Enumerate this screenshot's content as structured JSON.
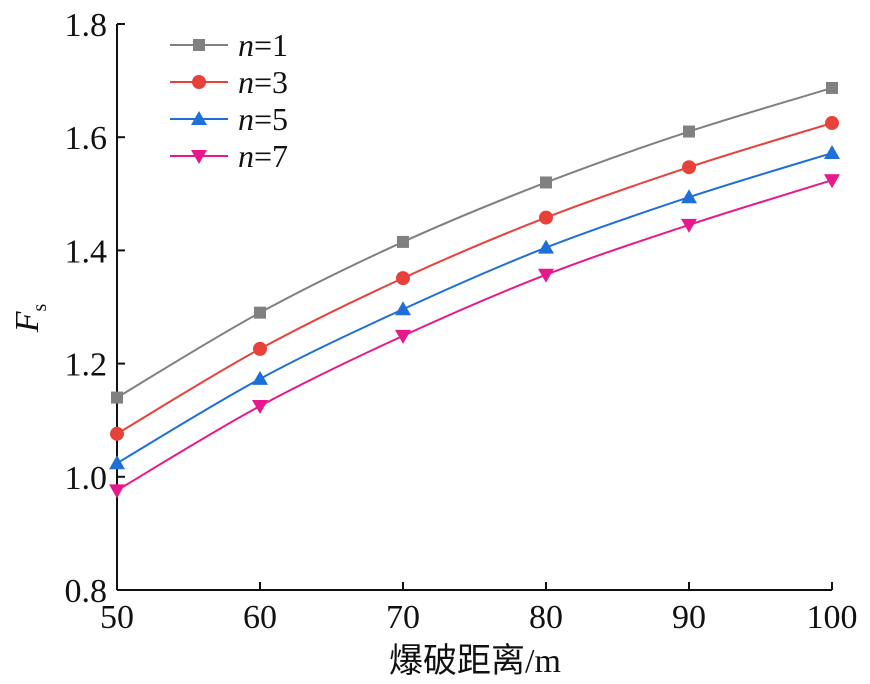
{
  "chart_data": {
    "type": "line",
    "title": "",
    "xlabel": "爆破距离/m",
    "ylabel": "F",
    "ylabel_sub": "s",
    "x": [
      50,
      60,
      70,
      80,
      90,
      100
    ],
    "xlim": [
      50,
      100
    ],
    "ylim": [
      0.8,
      1.8
    ],
    "xticks": [
      "50",
      "60",
      "70",
      "80",
      "90",
      "100"
    ],
    "yticks": [
      "0.8",
      "1.0",
      "1.2",
      "1.4",
      "1.6",
      "1.8"
    ],
    "grid": false,
    "legend_position": "top-left",
    "series": [
      {
        "name": "n=1",
        "var": "n",
        "eq": "=1",
        "marker": "square",
        "color": "#808080",
        "values": [
          1.14,
          1.29,
          1.415,
          1.52,
          1.61,
          1.687
        ]
      },
      {
        "name": "n=3",
        "var": "n",
        "eq": "=3",
        "marker": "circle",
        "color": "#e8413c",
        "values": [
          1.076,
          1.226,
          1.351,
          1.458,
          1.547,
          1.625
        ]
      },
      {
        "name": "n=5",
        "var": "n",
        "eq": "=5",
        "marker": "triangle-up",
        "color": "#1f6fd8",
        "values": [
          1.024,
          1.173,
          1.296,
          1.405,
          1.494,
          1.572
        ]
      },
      {
        "name": "n=7",
        "var": "n",
        "eq": "=7",
        "marker": "triangle-down",
        "color": "#e8188c",
        "values": [
          0.976,
          1.125,
          1.249,
          1.357,
          1.445,
          1.524
        ]
      }
    ]
  }
}
